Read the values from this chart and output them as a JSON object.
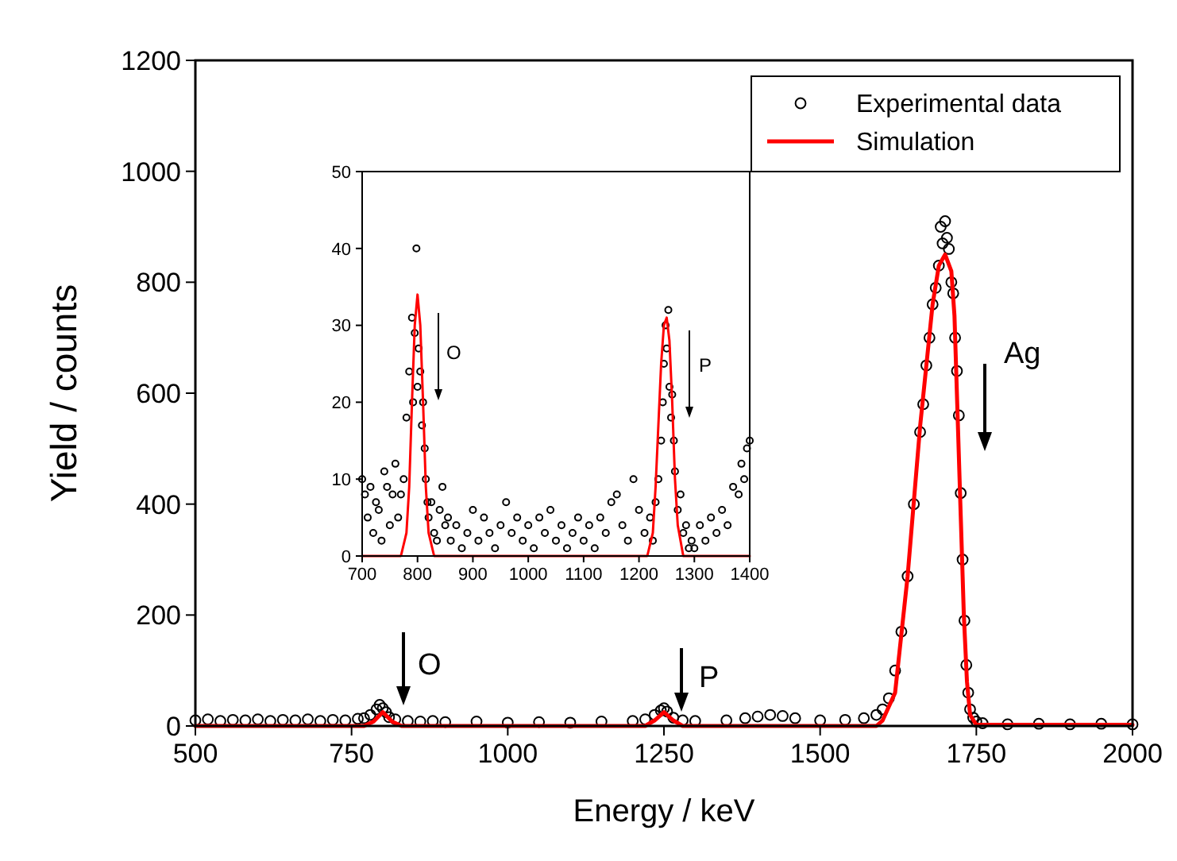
{
  "chart_data": [
    {
      "type": "scatter",
      "xlabel": "Energy / keV",
      "ylabel": "Yield / counts",
      "xlim": [
        500,
        2000
      ],
      "ylim": [
        0,
        1200
      ],
      "xticks": [
        500,
        750,
        1000,
        1250,
        1500,
        1750,
        2000
      ],
      "yticks": [
        0,
        200,
        400,
        600,
        800,
        1000,
        1200
      ],
      "legend": "top right",
      "grid": false,
      "series": [
        {
          "name": "Experimental data",
          "type": "scatter",
          "marker": "circle",
          "color": "#000000",
          "x": [
            500,
            520,
            540,
            560,
            580,
            600,
            620,
            640,
            660,
            680,
            700,
            720,
            740,
            760,
            770,
            780,
            790,
            795,
            800,
            805,
            810,
            820,
            840,
            860,
            880,
            900,
            950,
            1000,
            1050,
            1100,
            1150,
            1200,
            1220,
            1235,
            1245,
            1250,
            1255,
            1265,
            1280,
            1300,
            1350,
            1380,
            1400,
            1420,
            1440,
            1460,
            1500,
            1540,
            1570,
            1590,
            1600,
            1610,
            1620,
            1630,
            1640,
            1650,
            1660,
            1665,
            1670,
            1675,
            1680,
            1685,
            1690,
            1693,
            1696,
            1700,
            1703,
            1706,
            1710,
            1713,
            1716,
            1719,
            1722,
            1725,
            1728,
            1731,
            1734,
            1737,
            1740,
            1745,
            1750,
            1760,
            1800,
            1850,
            1900,
            1950,
            2000
          ],
          "values": [
            10,
            12,
            9,
            11,
            10,
            12,
            9,
            11,
            10,
            12,
            9,
            11,
            10,
            13,
            14,
            20,
            30,
            38,
            32,
            25,
            16,
            12,
            9,
            8,
            9,
            7,
            8,
            6,
            7,
            6,
            8,
            9,
            12,
            20,
            28,
            32,
            26,
            15,
            10,
            9,
            10,
            14,
            17,
            20,
            18,
            14,
            10,
            11,
            14,
            20,
            30,
            50,
            100,
            170,
            270,
            400,
            530,
            580,
            650,
            700,
            760,
            790,
            830,
            900,
            870,
            910,
            880,
            860,
            800,
            780,
            700,
            640,
            560,
            420,
            300,
            190,
            110,
            60,
            30,
            15,
            8,
            5,
            3,
            4,
            3,
            4,
            3
          ]
        },
        {
          "name": "Simulation",
          "type": "line",
          "line_style": "solid",
          "marker": "none",
          "color": "#ff0000",
          "x": [
            500,
            770,
            785,
            800,
            815,
            830,
            1220,
            1235,
            1250,
            1265,
            1280,
            1590,
            1600,
            1620,
            1640,
            1660,
            1680,
            1690,
            1700,
            1710,
            1715,
            1720,
            1725,
            1730,
            1735,
            1740,
            1750,
            2000
          ],
          "values": [
            0,
            0,
            8,
            25,
            8,
            0,
            0,
            10,
            25,
            10,
            0,
            0,
            10,
            60,
            270,
            540,
            760,
            830,
            850,
            820,
            740,
            560,
            380,
            200,
            80,
            20,
            2,
            2
          ]
        }
      ],
      "annotations": [
        "O",
        "P",
        "Ag"
      ]
    },
    {
      "type": "scatter",
      "xlim": [
        700,
        1400
      ],
      "ylim": [
        0,
        50
      ],
      "xticks": [
        700,
        800,
        900,
        1000,
        1100,
        1200,
        1300,
        1400
      ],
      "yticks": [
        0,
        10,
        20,
        30,
        40,
        50
      ],
      "grid": false,
      "series": [
        {
          "type": "scatter",
          "marker": "circle",
          "color": "#000000",
          "x": [
            700,
            705,
            710,
            715,
            720,
            725,
            730,
            735,
            740,
            745,
            750,
            755,
            760,
            765,
            770,
            775,
            780,
            785,
            790,
            792,
            795,
            798,
            800,
            802,
            805,
            808,
            810,
            813,
            815,
            818,
            820,
            825,
            830,
            835,
            840,
            845,
            850,
            855,
            860,
            870,
            880,
            890,
            900,
            910,
            920,
            930,
            940,
            950,
            960,
            970,
            980,
            990,
            1000,
            1010,
            1020,
            1030,
            1040,
            1050,
            1060,
            1070,
            1080,
            1090,
            1100,
            1110,
            1120,
            1130,
            1140,
            1150,
            1160,
            1170,
            1180,
            1190,
            1200,
            1210,
            1220,
            1225,
            1230,
            1235,
            1240,
            1243,
            1245,
            1248,
            1250,
            1253,
            1255,
            1258,
            1260,
            1263,
            1265,
            1270,
            1275,
            1280,
            1285,
            1290,
            1295,
            1300,
            1310,
            1320,
            1330,
            1340,
            1350,
            1360,
            1370,
            1380,
            1385,
            1390,
            1395,
            1400
          ],
          "values": [
            10,
            8,
            5,
            9,
            3,
            7,
            6,
            2,
            11,
            9,
            4,
            8,
            12,
            5,
            8,
            10,
            18,
            24,
            31,
            20,
            29,
            40,
            22,
            27,
            24,
            17,
            20,
            14,
            10,
            7,
            5,
            7,
            3,
            2,
            6,
            9,
            4,
            5,
            2,
            4,
            1,
            3,
            6,
            2,
            5,
            3,
            1,
            4,
            7,
            3,
            5,
            2,
            4,
            1,
            5,
            3,
            6,
            2,
            4,
            1,
            3,
            5,
            2,
            4,
            1,
            5,
            3,
            7,
            8,
            4,
            2,
            10,
            6,
            3,
            5,
            2,
            7,
            10,
            15,
            20,
            25,
            30,
            27,
            32,
            22,
            18,
            21,
            15,
            11,
            6,
            8,
            3,
            4,
            1,
            2,
            1,
            4,
            2,
            5,
            3,
            6,
            4,
            9,
            8,
            12,
            10,
            14,
            15
          ]
        },
        {
          "type": "line",
          "line_style": "solid",
          "marker": "none",
          "color": "#ff0000",
          "x": [
            700,
            770,
            780,
            785,
            790,
            795,
            800,
            805,
            810,
            815,
            820,
            830,
            1215,
            1225,
            1230,
            1235,
            1240,
            1245,
            1250,
            1255,
            1260,
            1265,
            1270,
            1280,
            1400
          ],
          "values": [
            0,
            0,
            3,
            9,
            20,
            30,
            34,
            30,
            20,
            9,
            3,
            0,
            0,
            3,
            9,
            17,
            25,
            30,
            31,
            28,
            20,
            10,
            4,
            0,
            0
          ]
        }
      ],
      "annotations": [
        "O",
        "P"
      ]
    }
  ]
}
